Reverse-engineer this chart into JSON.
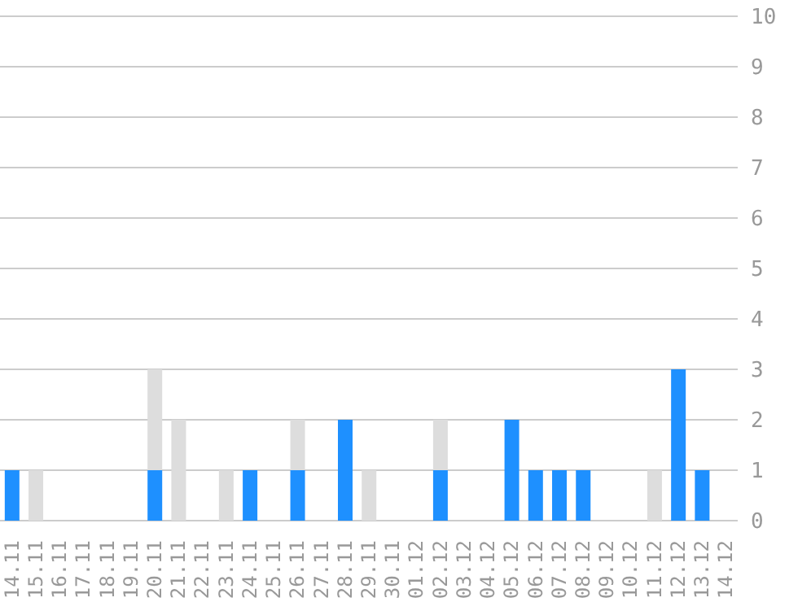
{
  "chart_data": {
    "type": "bar",
    "stacked": true,
    "categories": [
      "14.11",
      "15.11",
      "16.11",
      "17.11",
      "18.11",
      "19.11",
      "20.11",
      "21.11",
      "22.11",
      "23.11",
      "24.11",
      "25.11",
      "26.11",
      "27.11",
      "28.11",
      "29.11",
      "30.11",
      "01.12",
      "02.12",
      "03.12",
      "04.12",
      "05.12",
      "06.12",
      "07.12",
      "08.12",
      "09.12",
      "10.12",
      "11.12",
      "12.12",
      "13.12",
      "14.12"
    ],
    "series": [
      {
        "color": "#1e90ff",
        "values": [
          1,
          0,
          0,
          0,
          0,
          0,
          1,
          0,
          0,
          0,
          1,
          0,
          1,
          0,
          2,
          0,
          0,
          0,
          1,
          0,
          0,
          2,
          1,
          1,
          1,
          0,
          0,
          0,
          3,
          1,
          0
        ]
      },
      {
        "color": "#dddddd",
        "values": [
          0,
          1,
          0,
          0,
          0,
          0,
          2,
          2,
          0,
          1,
          0,
          0,
          1,
          0,
          0,
          1,
          0,
          0,
          1,
          0,
          0,
          0,
          0,
          0,
          0,
          0,
          0,
          1,
          0,
          0,
          0
        ]
      }
    ],
    "ylim": [
      0,
      10
    ],
    "yticks": [
      0,
      1,
      2,
      3,
      4,
      5,
      6,
      7,
      8,
      9,
      10
    ],
    "grid": "y",
    "legend": false
  }
}
